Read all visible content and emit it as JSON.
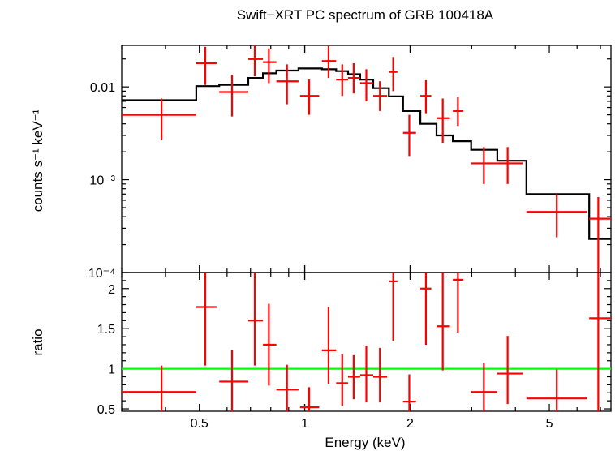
{
  "chart_data": {
    "title": "Swift−XRT PC spectrum of GRB 100418A",
    "xlabel": "Energy (keV)",
    "x_scale": "log",
    "xlim": [
      0.3,
      7.5
    ],
    "x_ticks": [
      {
        "value": 0.5,
        "label": "0.5"
      },
      {
        "value": 1,
        "label": "1"
      },
      {
        "value": 2,
        "label": "2"
      },
      {
        "value": 5,
        "label": "5"
      }
    ],
    "panels": [
      {
        "id": "spectrum",
        "type": "scatter",
        "ylabel": "counts s⁻¹ keV⁻¹",
        "y_scale": "log",
        "ylim": [
          0.0001,
          0.028
        ],
        "y_ticks": [
          {
            "value": 0.01,
            "label": "0.01"
          },
          {
            "value": 0.001,
            "label": "10⁻³"
          },
          {
            "value": 0.0001,
            "label": "10⁻⁴"
          }
        ],
        "data_color": "#ff0000",
        "model_color": "#000000",
        "data": [
          {
            "x": 0.39,
            "xlo": 0.3,
            "xhi": 0.49,
            "y": 0.005,
            "ylo": 0.0027,
            "yhi": 0.0075
          },
          {
            "x": 0.52,
            "xlo": 0.49,
            "xhi": 0.56,
            "y": 0.018,
            "ylo": 0.0105,
            "yhi": 0.027
          },
          {
            "x": 0.62,
            "xlo": 0.57,
            "xhi": 0.69,
            "y": 0.0088,
            "ylo": 0.0048,
            "yhi": 0.0135
          },
          {
            "x": 0.72,
            "xlo": 0.69,
            "xhi": 0.76,
            "y": 0.02,
            "ylo": 0.013,
            "yhi": 0.028
          },
          {
            "x": 0.79,
            "xlo": 0.76,
            "xhi": 0.83,
            "y": 0.0185,
            "ylo": 0.011,
            "yhi": 0.026
          },
          {
            "x": 0.89,
            "xlo": 0.83,
            "xhi": 0.96,
            "y": 0.0115,
            "ylo": 0.0065,
            "yhi": 0.0175
          },
          {
            "x": 1.03,
            "xlo": 0.97,
            "xhi": 1.1,
            "y": 0.008,
            "ylo": 0.005,
            "yhi": 0.012
          },
          {
            "x": 1.17,
            "xlo": 1.12,
            "xhi": 1.23,
            "y": 0.019,
            "ylo": 0.0125,
            "yhi": 0.0275
          },
          {
            "x": 1.28,
            "xlo": 1.23,
            "xhi": 1.33,
            "y": 0.012,
            "ylo": 0.008,
            "yhi": 0.0175
          },
          {
            "x": 1.38,
            "xlo": 1.33,
            "xhi": 1.44,
            "y": 0.0125,
            "ylo": 0.0085,
            "yhi": 0.018
          },
          {
            "x": 1.5,
            "xlo": 1.44,
            "xhi": 1.57,
            "y": 0.011,
            "ylo": 0.007,
            "yhi": 0.0155
          },
          {
            "x": 1.64,
            "xlo": 1.57,
            "xhi": 1.72,
            "y": 0.008,
            "ylo": 0.0055,
            "yhi": 0.0115
          },
          {
            "x": 1.79,
            "xlo": 1.74,
            "xhi": 1.84,
            "y": 0.0145,
            "ylo": 0.009,
            "yhi": 0.021
          },
          {
            "x": 1.99,
            "xlo": 1.91,
            "xhi": 2.08,
            "y": 0.0032,
            "ylo": 0.0018,
            "yhi": 0.005
          },
          {
            "x": 2.22,
            "xlo": 2.14,
            "xhi": 2.3,
            "y": 0.008,
            "ylo": 0.0052,
            "yhi": 0.0118
          },
          {
            "x": 2.48,
            "xlo": 2.38,
            "xhi": 2.6,
            "y": 0.0046,
            "ylo": 0.0025,
            "yhi": 0.0075
          },
          {
            "x": 2.74,
            "xlo": 2.65,
            "xhi": 2.84,
            "y": 0.0055,
            "ylo": 0.0038,
            "yhi": 0.0078
          },
          {
            "x": 3.25,
            "xlo": 2.99,
            "xhi": 3.55,
            "y": 0.0015,
            "ylo": 0.0009,
            "yhi": 0.00225
          },
          {
            "x": 3.8,
            "xlo": 3.55,
            "xhi": 4.2,
            "y": 0.0015,
            "ylo": 0.0009,
            "yhi": 0.00225
          },
          {
            "x": 5.25,
            "xlo": 4.3,
            "xhi": 6.4,
            "y": 0.00045,
            "ylo": 0.00024,
            "yhi": 0.0007
          },
          {
            "x": 6.9,
            "xlo": 6.5,
            "xhi": 7.5,
            "y": 0.00038,
            "ylo": 0.0001,
            "yhi": 0.00065
          }
        ],
        "model_steps": [
          {
            "x0": 0.3,
            "x1": 0.49,
            "y": 0.0072
          },
          {
            "x0": 0.49,
            "x1": 0.57,
            "y": 0.0102
          },
          {
            "x0": 0.57,
            "x1": 0.69,
            "y": 0.0105
          },
          {
            "x0": 0.69,
            "x1": 0.76,
            "y": 0.0125
          },
          {
            "x0": 0.76,
            "x1": 0.83,
            "y": 0.014
          },
          {
            "x0": 0.83,
            "x1": 0.96,
            "y": 0.015
          },
          {
            "x0": 0.96,
            "x1": 1.12,
            "y": 0.0158
          },
          {
            "x0": 1.12,
            "x1": 1.23,
            "y": 0.0155
          },
          {
            "x0": 1.23,
            "x1": 1.33,
            "y": 0.0148
          },
          {
            "x0": 1.33,
            "x1": 1.44,
            "y": 0.0137
          },
          {
            "x0": 1.44,
            "x1": 1.57,
            "y": 0.012
          },
          {
            "x0": 1.57,
            "x1": 1.74,
            "y": 0.0097
          },
          {
            "x0": 1.74,
            "x1": 1.91,
            "y": 0.0079
          },
          {
            "x0": 1.91,
            "x1": 2.14,
            "y": 0.0055
          },
          {
            "x0": 2.14,
            "x1": 2.38,
            "y": 0.004
          },
          {
            "x0": 2.38,
            "x1": 2.65,
            "y": 0.003
          },
          {
            "x0": 2.65,
            "x1": 2.99,
            "y": 0.0026
          },
          {
            "x0": 2.99,
            "x1": 3.55,
            "y": 0.0021
          },
          {
            "x0": 3.55,
            "x1": 4.3,
            "y": 0.0016
          },
          {
            "x0": 4.3,
            "x1": 6.5,
            "y": 0.0007
          },
          {
            "x0": 6.5,
            "x1": 7.5,
            "y": 0.00023
          }
        ]
      },
      {
        "id": "ratio",
        "type": "scatter",
        "ylabel": "ratio",
        "y_scale": "linear",
        "ylim": [
          0.47,
          2.2
        ],
        "y_ticks": [
          {
            "value": 0.5,
            "label": "0.5"
          },
          {
            "value": 1,
            "label": "1"
          },
          {
            "value": 1.5,
            "label": "1.5"
          },
          {
            "value": 2,
            "label": "2"
          }
        ],
        "reference_line": {
          "y": 1,
          "color": "#00ff00"
        },
        "data_color": "#ff0000",
        "data": [
          {
            "x": 0.39,
            "xlo": 0.3,
            "xhi": 0.49,
            "y": 0.71,
            "ylo": 0.37,
            "yhi": 1.04
          },
          {
            "x": 0.52,
            "xlo": 0.49,
            "xhi": 0.56,
            "y": 1.77,
            "ylo": 1.04,
            "yhi": 2.62
          },
          {
            "x": 0.62,
            "xlo": 0.57,
            "xhi": 0.69,
            "y": 0.84,
            "ylo": 0.46,
            "yhi": 1.23
          },
          {
            "x": 0.72,
            "xlo": 0.69,
            "xhi": 0.76,
            "y": 1.6,
            "ylo": 1.04,
            "yhi": 2.24
          },
          {
            "x": 0.79,
            "xlo": 0.76,
            "xhi": 0.83,
            "y": 1.3,
            "ylo": 0.79,
            "yhi": 1.81
          },
          {
            "x": 0.89,
            "xlo": 0.83,
            "xhi": 0.96,
            "y": 0.74,
            "ylo": 0.43,
            "yhi": 1.05
          },
          {
            "x": 1.03,
            "xlo": 0.97,
            "xhi": 1.1,
            "y": 0.52,
            "ylo": 0.32,
            "yhi": 0.77
          },
          {
            "x": 1.17,
            "xlo": 1.12,
            "xhi": 1.23,
            "y": 1.23,
            "ylo": 0.81,
            "yhi": 1.77
          },
          {
            "x": 1.28,
            "xlo": 1.23,
            "xhi": 1.33,
            "y": 0.82,
            "ylo": 0.54,
            "yhi": 1.18
          },
          {
            "x": 1.38,
            "xlo": 1.33,
            "xhi": 1.44,
            "y": 0.9,
            "ylo": 0.62,
            "yhi": 1.17
          },
          {
            "x": 1.5,
            "xlo": 1.44,
            "xhi": 1.57,
            "y": 0.92,
            "ylo": 0.58,
            "yhi": 1.29
          },
          {
            "x": 1.64,
            "xlo": 1.57,
            "xhi": 1.72,
            "y": 0.9,
            "ylo": 0.58,
            "yhi": 1.26
          },
          {
            "x": 1.79,
            "xlo": 1.74,
            "xhi": 1.84,
            "y": 2.09,
            "ylo": 1.35,
            "yhi": 3.0
          },
          {
            "x": 1.99,
            "xlo": 1.91,
            "xhi": 2.08,
            "y": 0.59,
            "ylo": 0.34,
            "yhi": 0.93
          },
          {
            "x": 2.22,
            "xlo": 2.14,
            "xhi": 2.3,
            "y": 2.0,
            "ylo": 1.3,
            "yhi": 2.95
          },
          {
            "x": 2.48,
            "xlo": 2.38,
            "xhi": 2.6,
            "y": 1.53,
            "ylo": 0.98,
            "yhi": 2.25
          },
          {
            "x": 2.74,
            "xlo": 2.65,
            "xhi": 2.84,
            "y": 2.11,
            "ylo": 1.45,
            "yhi": 3.0
          },
          {
            "x": 3.25,
            "xlo": 2.99,
            "xhi": 3.55,
            "y": 0.71,
            "ylo": 0.43,
            "yhi": 1.07
          },
          {
            "x": 3.8,
            "xlo": 3.55,
            "xhi": 4.2,
            "y": 0.94,
            "ylo": 0.56,
            "yhi": 1.41
          },
          {
            "x": 5.25,
            "xlo": 4.3,
            "xhi": 6.4,
            "y": 0.63,
            "ylo": 0.34,
            "yhi": 0.99
          },
          {
            "x": 6.9,
            "xlo": 6.5,
            "xhi": 7.5,
            "y": 1.63,
            "ylo": 0.4,
            "yhi": 2.7
          }
        ]
      }
    ]
  }
}
